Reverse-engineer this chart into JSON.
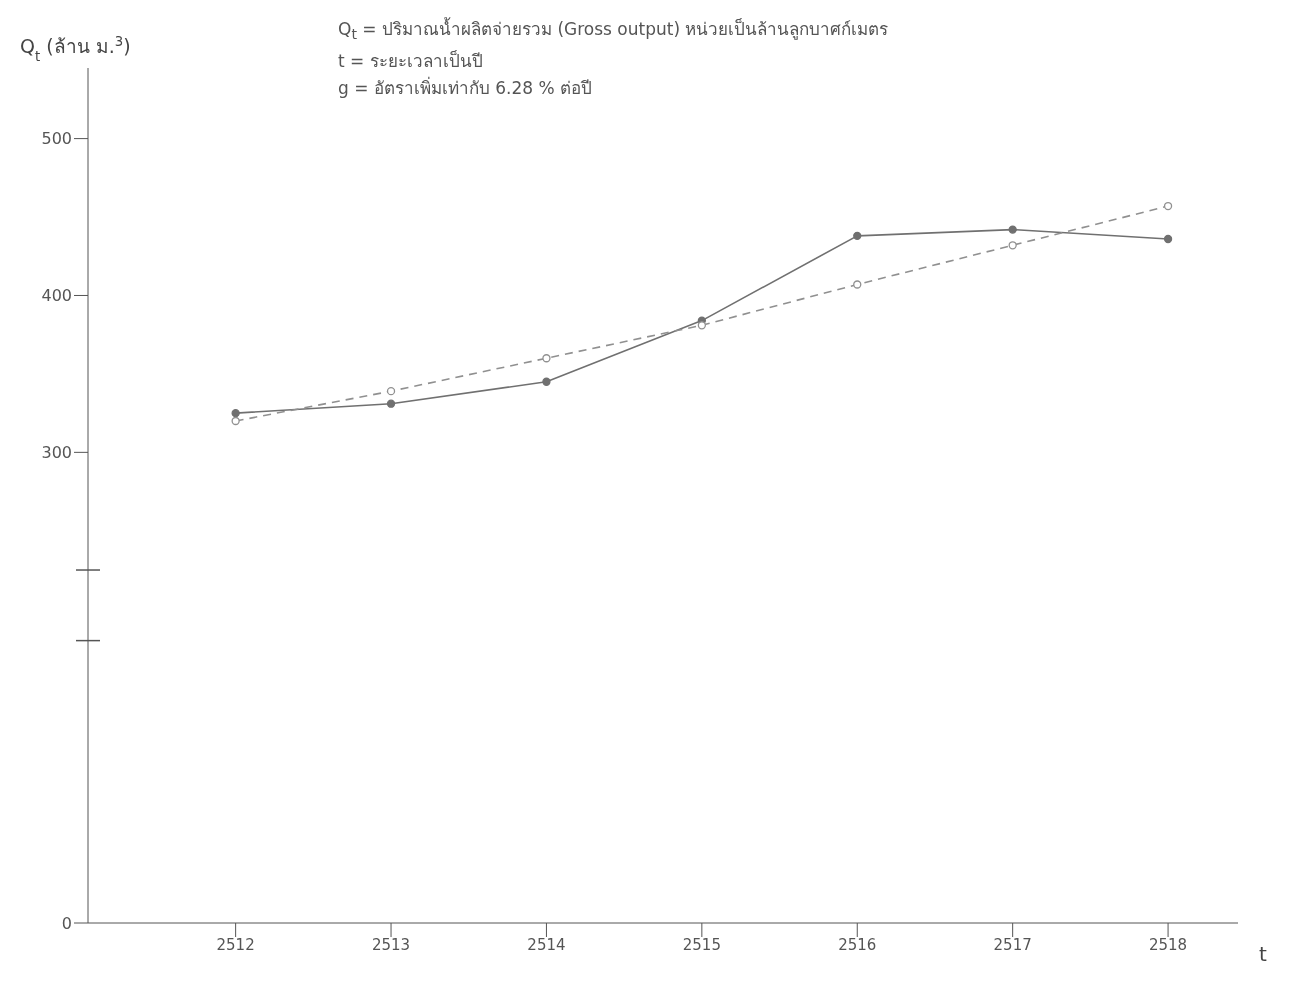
{
  "chart_data": {
    "type": "line",
    "ylabel": "Q$_{t}$ (ล้าน ม.$^{3}$)",
    "xlabel": "t",
    "annotations": [
      "Q$_{t}$ = ปริมาณน้ำผลิตจ่ายรวม (Gross output) หน่วยเป็นล้านลูกบาศก์เมตร",
      "t = ระยะเวลาเป็นปี",
      "g = อัตราเพิ่มเท่ากับ 6.28 % ต่อปี"
    ],
    "x": [
      2512,
      2513,
      2514,
      2515,
      2516,
      2517,
      2518
    ],
    "series": [
      {
        "color": "#707070",
        "values": [
          325,
          331,
          345,
          384,
          438,
          442,
          436
        ],
        "line_style": "solid",
        "marker": "circle"
      },
      {
        "color": "#909090",
        "values": [
          320,
          339,
          360,
          381,
          407,
          432,
          457
        ],
        "line_style": "dashed",
        "marker": "circle"
      }
    ],
    "xlim": [
      2511.05,
      2518.45
    ],
    "xticks": [
      2512,
      2513,
      2514,
      2515,
      2516,
      2517,
      2518
    ],
    "ylim": [
      0,
      545
    ],
    "yticks": [
      0,
      300,
      400,
      500
    ],
    "grid": false
  }
}
